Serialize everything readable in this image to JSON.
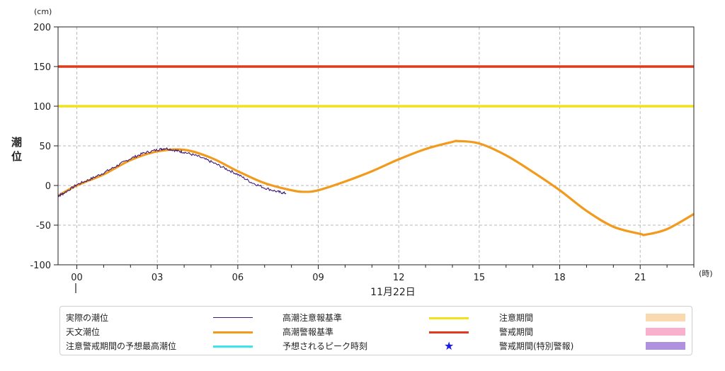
{
  "chart_data": {
    "type": "line",
    "title": "",
    "y_unit": "(cm)",
    "ylabel": "潮位",
    "x_unit": "(時)",
    "date_label": "11月22日",
    "ylim": [
      -100,
      200
    ],
    "yticks": [
      -100,
      -50,
      0,
      50,
      100,
      150,
      200
    ],
    "xlim": [
      -0.7,
      23.0
    ],
    "xticks": [
      0,
      3,
      6,
      9,
      12,
      15,
      18,
      21
    ],
    "xtick_labels": [
      "00",
      "03",
      "06",
      "09",
      "12",
      "15",
      "18",
      "21"
    ],
    "grid": true,
    "series": [
      {
        "name": "天文潮位",
        "color": "#f29a1c",
        "x": [
          -0.7,
          0,
          1,
          2,
          3,
          4,
          5,
          6,
          7,
          8,
          8.5,
          9,
          10,
          11,
          12,
          13,
          14,
          14.2,
          15,
          16,
          17,
          18,
          19,
          20,
          21,
          21.2,
          22,
          23
        ],
        "y": [
          -13,
          0,
          14,
          32,
          43,
          45,
          35,
          18,
          3,
          -6,
          -8,
          -6,
          5,
          18,
          33,
          46,
          55,
          56,
          53,
          38,
          17,
          -6,
          -32,
          -52,
          -61,
          -62,
          -55,
          -36
        ]
      },
      {
        "name": "実際の潮位",
        "color": "#3d1a78",
        "x": [
          -0.7,
          -0.5,
          0,
          0.5,
          1,
          1.5,
          2,
          2.5,
          3,
          3.3,
          3.7,
          4,
          4.5,
          5,
          5.5,
          6,
          6.5,
          7,
          7.5,
          7.8
        ],
        "y": [
          -13,
          -10,
          1,
          8,
          16,
          25,
          34,
          41,
          45,
          47,
          44,
          42,
          37,
          30,
          22,
          14,
          4,
          -3,
          -8,
          -10
        ]
      }
    ],
    "thresholds": [
      {
        "name": "高潮注意報基準",
        "value": 100,
        "color": "#f2e21c"
      },
      {
        "name": "高潮警報基準",
        "value": 150,
        "color": "#e0391c"
      }
    ]
  },
  "legend": {
    "items": [
      {
        "label": "実際の潮位",
        "kind": "line",
        "color": "#3d1a78"
      },
      {
        "label": "高潮注意報基準",
        "kind": "line",
        "color": "#f2e21c"
      },
      {
        "label": "注意期間",
        "kind": "box",
        "color": "#f9d9b0"
      },
      {
        "label": "天文潮位",
        "kind": "line",
        "color": "#f29a1c"
      },
      {
        "label": "高潮警報基準",
        "kind": "line",
        "color": "#e0391c"
      },
      {
        "label": "警戒期間",
        "kind": "box",
        "color": "#f9b0cc"
      },
      {
        "label": "注意警戒期間の予想最高潮位",
        "kind": "line",
        "color": "#39e6ee"
      },
      {
        "label": "予想されるピーク時刻",
        "kind": "star",
        "color": "#1a1ae6",
        "symbol": "★"
      },
      {
        "label": "警戒期間(特別警報)",
        "kind": "box",
        "color": "#b091e0"
      }
    ]
  }
}
